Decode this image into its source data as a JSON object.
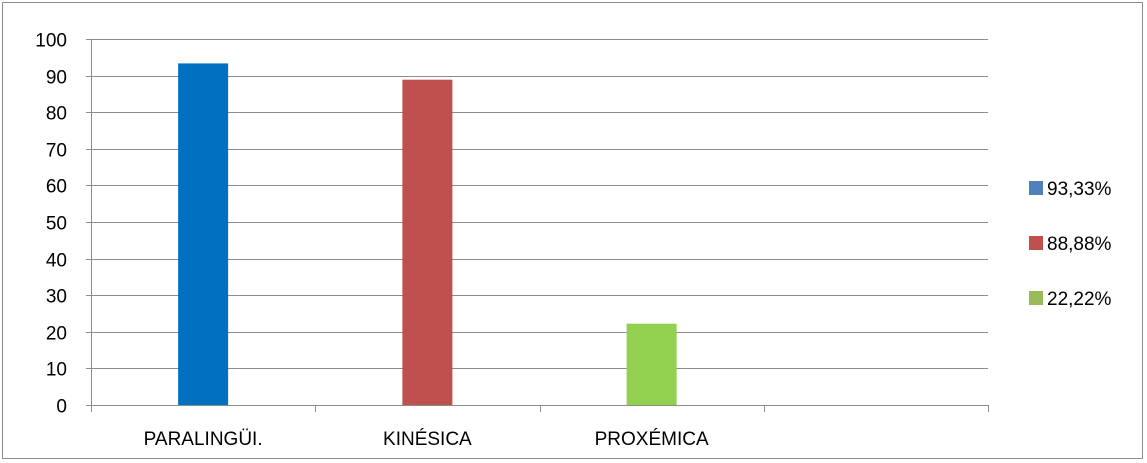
{
  "chart_data": {
    "type": "bar",
    "categories": [
      "PARALINGÜI.",
      "KINÉSICA",
      "PROXÉMICA",
      ""
    ],
    "series": [
      {
        "name": "93,33%",
        "color": "#0070c0",
        "values": [
          93.33,
          null,
          null,
          null
        ]
      },
      {
        "name": "88,88%",
        "color": "#c0504d",
        "values": [
          null,
          88.88,
          null,
          null
        ]
      },
      {
        "name": "22,22%",
        "color": "#92d050",
        "values": [
          null,
          null,
          22.22,
          null
        ]
      }
    ],
    "legend_swatch_colors": [
      "#4f81bd",
      "#c0504d",
      "#9bbb59"
    ],
    "ylim": [
      0,
      100
    ],
    "yticks": [
      0,
      10,
      20,
      30,
      40,
      50,
      60,
      70,
      80,
      90,
      100
    ],
    "grid": true,
    "legend_position": "right",
    "title": "",
    "xlabel": "",
    "ylabel": ""
  }
}
